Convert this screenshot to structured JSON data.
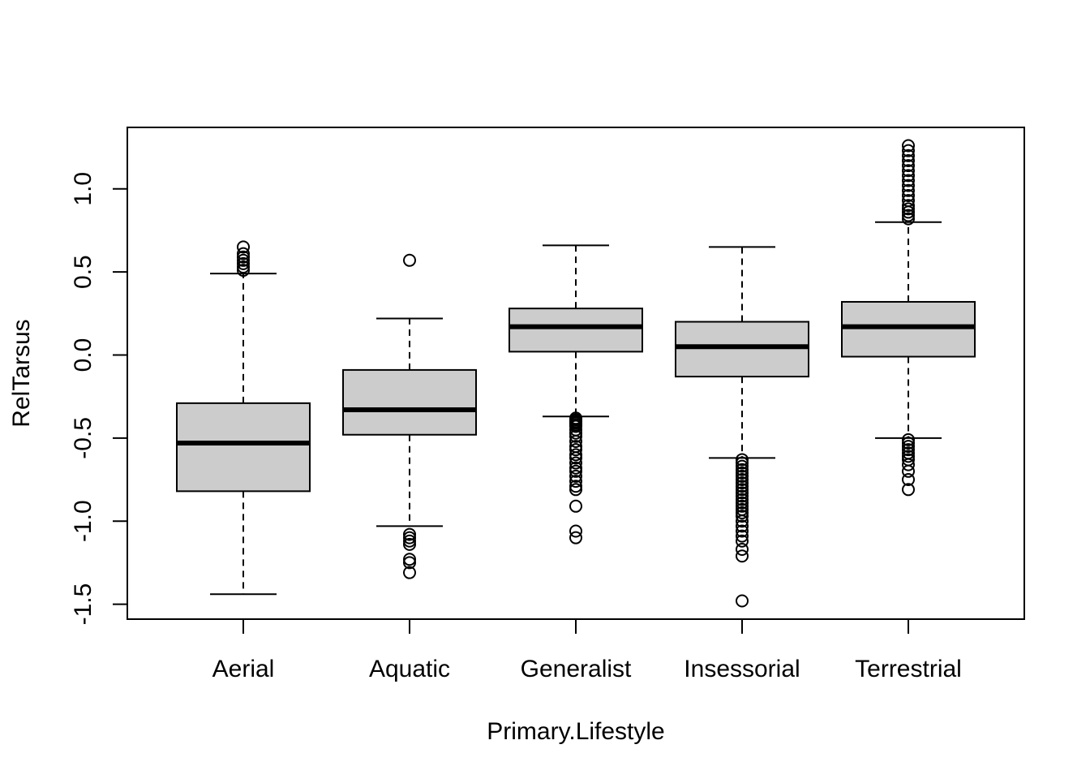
{
  "chart_data": {
    "type": "boxplot",
    "title": "",
    "xlabel": "Primary.Lifestyle",
    "ylabel": "RelTarsus",
    "ylim": [
      -1.59,
      1.37
    ],
    "yticks": [
      "-1.5",
      "-1.0",
      "-0.5",
      "0.0",
      "0.5",
      "1.0"
    ],
    "ytick_values": [
      -1.5,
      -1.0,
      -0.5,
      0.0,
      0.5,
      1.0
    ],
    "categories": [
      "Aerial",
      "Aquatic",
      "Generalist",
      "Insessorial",
      "Terrestrial"
    ],
    "box_fill": "#cccccc",
    "line_color": "#000000",
    "boxes": [
      {
        "name": "Aerial",
        "whisker_low": -1.44,
        "q1": -0.82,
        "median": -0.53,
        "q3": -0.29,
        "whisker_high": 0.49,
        "outliers": [
          0.51,
          0.53,
          0.55,
          0.57,
          0.59,
          0.61,
          0.65
        ]
      },
      {
        "name": "Aquatic",
        "whisker_low": -1.03,
        "q1": -0.48,
        "median": -0.33,
        "q3": -0.09,
        "whisker_high": 0.22,
        "outliers": [
          0.57,
          -1.08,
          -1.1,
          -1.12,
          -1.14,
          -1.23,
          -1.25,
          -1.31
        ]
      },
      {
        "name": "Generalist",
        "whisker_low": -0.37,
        "q1": 0.02,
        "median": 0.17,
        "q3": 0.28,
        "whisker_high": 0.66,
        "outliers": [
          -0.38,
          -0.39,
          -0.4,
          -0.41,
          -0.42,
          -0.43,
          -0.45,
          -0.47,
          -0.49,
          -0.52,
          -0.55,
          -0.57,
          -0.6,
          -0.62,
          -0.65,
          -0.68,
          -0.7,
          -0.73,
          -0.76,
          -0.79,
          -0.81,
          -0.91,
          -1.06,
          -1.1
        ]
      },
      {
        "name": "Insessorial",
        "whisker_low": -0.62,
        "q1": -0.13,
        "median": 0.05,
        "q3": 0.2,
        "whisker_high": 0.65,
        "outliers": [
          -0.63,
          -0.65,
          -0.67,
          -0.69,
          -0.71,
          -0.73,
          -0.75,
          -0.77,
          -0.79,
          -0.81,
          -0.83,
          -0.85,
          -0.87,
          -0.89,
          -0.91,
          -0.93,
          -0.95,
          -0.97,
          -1.0,
          -1.03,
          -1.06,
          -1.09,
          -1.12,
          -1.17,
          -1.21,
          -1.48
        ]
      },
      {
        "name": "Terrestrial",
        "whisker_low": -0.5,
        "q1": -0.01,
        "median": 0.17,
        "q3": 0.32,
        "whisker_high": 0.8,
        "outliers": [
          0.82,
          0.84,
          0.86,
          0.88,
          0.9,
          0.93,
          0.96,
          0.99,
          1.02,
          1.05,
          1.08,
          1.11,
          1.14,
          1.17,
          1.2,
          1.23,
          1.26,
          -0.51,
          -0.53,
          -0.55,
          -0.57,
          -0.59,
          -0.61,
          -0.63,
          -0.66,
          -0.7,
          -0.75,
          -0.81
        ]
      }
    ]
  }
}
